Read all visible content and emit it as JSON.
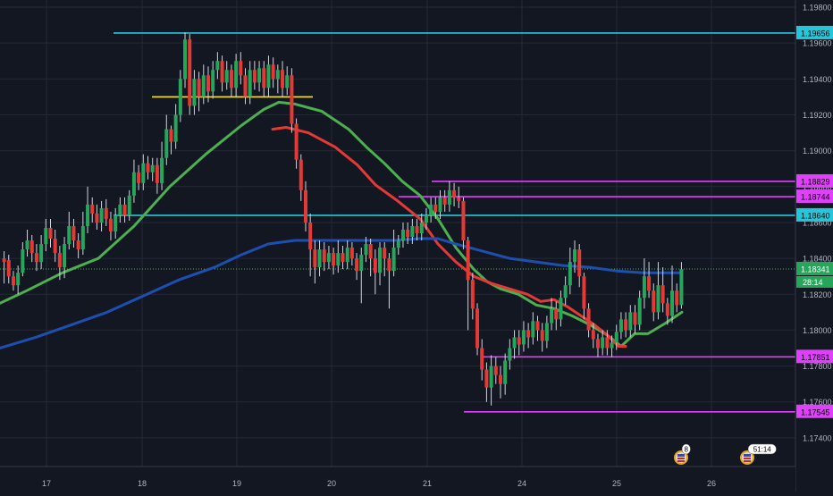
{
  "chart_data": {
    "type": "candlestick",
    "x_ticks": [
      "17",
      "18",
      "19",
      "20",
      "21",
      "24",
      "25",
      "26"
    ],
    "y_ticks": [
      "1.19800",
      "1.19600",
      "1.19400",
      "1.19200",
      "1.19000",
      "1.18800",
      "1.18600",
      "1.18400",
      "1.18200",
      "1.18000",
      "1.17800",
      "1.17600",
      "1.17400"
    ],
    "ylim": [
      1.1724,
      1.1984
    ],
    "grid": true,
    "current_price": {
      "value": 1.18341,
      "label": "1.18341",
      "countdown": "28:14"
    },
    "price_lines": [
      {
        "label": "1.19656",
        "value": 1.19656,
        "color": "#26c6da"
      },
      {
        "label": "1.18829",
        "value": 1.18829,
        "color": "#e040fb"
      },
      {
        "label": "1.18744",
        "value": 1.18744,
        "color": "#e040fb"
      },
      {
        "label": "1.18640",
        "value": 1.1864,
        "color": "#26c6da"
      },
      {
        "label": "1.17851",
        "value": 1.17851,
        "color": "#e040fb"
      },
      {
        "label": "1.17545",
        "value": 1.17545,
        "color": "#e040fb"
      }
    ],
    "short_line": {
      "value": 1.193,
      "color": "#f5e142"
    },
    "moving_averages": [
      {
        "color": "#4caf50",
        "points": [
          [
            0,
            1.1815
          ],
          [
            30,
            1.1822
          ],
          [
            70,
            1.1832
          ],
          [
            110,
            1.184
          ],
          [
            150,
            1.1858
          ],
          [
            190,
            1.188
          ],
          [
            230,
            1.1898
          ],
          [
            270,
            1.1914
          ],
          [
            295,
            1.1923
          ],
          [
            312,
            1.1927
          ],
          [
            330,
            1.1926
          ],
          [
            360,
            1.1922
          ],
          [
            390,
            1.1912
          ],
          [
            410,
            1.1902
          ],
          [
            430,
            1.1893
          ],
          [
            450,
            1.1883
          ],
          [
            470,
            1.1875
          ],
          [
            490,
            1.1862
          ],
          [
            510,
            1.1846
          ],
          [
            530,
            1.1834
          ],
          [
            545,
            1.1827
          ],
          [
            560,
            1.1823
          ],
          [
            580,
            1.182
          ],
          [
            600,
            1.1814
          ],
          [
            620,
            1.1812
          ],
          [
            640,
            1.1808
          ],
          [
            660,
            1.1803
          ],
          [
            680,
            1.1797
          ],
          [
            695,
            1.1791
          ],
          [
            710,
            1.1798
          ],
          [
            725,
            1.1798
          ],
          [
            745,
            1.1804
          ],
          [
            763,
            1.181
          ]
        ]
      },
      {
        "color": "#e53935",
        "points": [
          [
            305,
            1.1912
          ],
          [
            320,
            1.1913
          ],
          [
            345,
            1.191
          ],
          [
            375,
            1.1902
          ],
          [
            400,
            1.1892
          ],
          [
            420,
            1.1881
          ],
          [
            445,
            1.1872
          ],
          [
            470,
            1.1862
          ],
          [
            490,
            1.1848
          ],
          [
            510,
            1.1838
          ],
          [
            530,
            1.183
          ],
          [
            550,
            1.1826
          ],
          [
            570,
            1.1823
          ],
          [
            590,
            1.182
          ],
          [
            605,
            1.1816
          ],
          [
            620,
            1.1817
          ],
          [
            635,
            1.1813
          ],
          [
            650,
            1.1808
          ],
          [
            665,
            1.1803
          ],
          [
            680,
            1.1797
          ],
          [
            692,
            1.1791
          ],
          [
            700,
            1.1791
          ]
        ]
      },
      {
        "color": "#1e4fb0",
        "points": [
          [
            0,
            1.179
          ],
          [
            40,
            1.1796
          ],
          [
            80,
            1.1803
          ],
          [
            120,
            1.181
          ],
          [
            160,
            1.1819
          ],
          [
            200,
            1.1828
          ],
          [
            240,
            1.1835
          ],
          [
            270,
            1.1842
          ],
          [
            300,
            1.1848
          ],
          [
            330,
            1.185
          ],
          [
            360,
            1.185
          ],
          [
            400,
            1.185
          ],
          [
            440,
            1.185
          ],
          [
            470,
            1.1851
          ],
          [
            490,
            1.1851
          ],
          [
            510,
            1.1848
          ],
          [
            540,
            1.1844
          ],
          [
            570,
            1.184
          ],
          [
            600,
            1.1838
          ],
          [
            630,
            1.1836
          ],
          [
            660,
            1.1835
          ],
          [
            690,
            1.1833
          ],
          [
            720,
            1.1832
          ],
          [
            763,
            1.1832
          ]
        ]
      }
    ],
    "candles": [
      [
        1.184,
        1.1838,
        1.1844,
        1.1826
      ],
      [
        1.1839,
        1.183,
        1.1842,
        1.1826
      ],
      [
        1.183,
        1.1825,
        1.1833,
        1.1822
      ],
      [
        1.1825,
        1.1832,
        1.1836,
        1.182
      ],
      [
        1.1832,
        1.1845,
        1.1849,
        1.183
      ],
      [
        1.1845,
        1.185,
        1.1856,
        1.1841
      ],
      [
        1.185,
        1.1843,
        1.1853,
        1.1838
      ],
      [
        1.1843,
        1.1838,
        1.1848,
        1.1833
      ],
      [
        1.1838,
        1.1848,
        1.1853,
        1.1834
      ],
      [
        1.1848,
        1.1857,
        1.1862,
        1.1844
      ],
      [
        1.1857,
        1.1851,
        1.1862,
        1.1846
      ],
      [
        1.1851,
        1.1843,
        1.1856,
        1.1838
      ],
      [
        1.1843,
        1.1835,
        1.1847,
        1.1828
      ],
      [
        1.1835,
        1.1848,
        1.1852,
        1.1829
      ],
      [
        1.1848,
        1.1858,
        1.1866,
        1.1845
      ],
      [
        1.1858,
        1.185,
        1.1862,
        1.1846
      ],
      [
        1.185,
        1.1845,
        1.1854,
        1.184
      ],
      [
        1.1845,
        1.1858,
        1.1866,
        1.1842
      ],
      [
        1.1858,
        1.187,
        1.188,
        1.1854
      ],
      [
        1.187,
        1.1865,
        1.1874,
        1.186
      ],
      [
        1.1865,
        1.186,
        1.187,
        1.1856
      ],
      [
        1.186,
        1.1868,
        1.1872,
        1.1855
      ],
      [
        1.1868,
        1.1862,
        1.1873,
        1.1858
      ],
      [
        1.1862,
        1.1855,
        1.1866,
        1.185
      ],
      [
        1.1855,
        1.1864,
        1.1868,
        1.1851
      ],
      [
        1.1864,
        1.187,
        1.1874,
        1.186
      ],
      [
        1.187,
        1.1864,
        1.1874,
        1.186
      ],
      [
        1.1864,
        1.1875,
        1.1878,
        1.1861
      ],
      [
        1.1875,
        1.1888,
        1.1895,
        1.1871
      ],
      [
        1.1888,
        1.1882,
        1.1892,
        1.1878
      ],
      [
        1.1882,
        1.1893,
        1.1898,
        1.1878
      ],
      [
        1.1893,
        1.1888,
        1.1897,
        1.1884
      ],
      [
        1.1888,
        1.1892,
        1.1896,
        1.1883
      ],
      [
        1.1892,
        1.1882,
        1.1896,
        1.1876
      ],
      [
        1.1882,
        1.1896,
        1.1905,
        1.1878
      ],
      [
        1.1896,
        1.1912,
        1.192,
        1.1892
      ],
      [
        1.1912,
        1.1905,
        1.1914,
        1.1898
      ],
      [
        1.1905,
        1.192,
        1.1926,
        1.1901
      ],
      [
        1.192,
        1.194,
        1.1945,
        1.1916
      ],
      [
        1.194,
        1.1962,
        1.1966,
        1.1935
      ],
      [
        1.1962,
        1.1925,
        1.1965,
        1.192
      ],
      [
        1.1925,
        1.194,
        1.1945,
        1.192
      ],
      [
        1.194,
        1.193,
        1.1944,
        1.1922
      ],
      [
        1.193,
        1.1942,
        1.1948,
        1.1926
      ],
      [
        1.1942,
        1.1933,
        1.1947,
        1.1927
      ],
      [
        1.1933,
        1.1945,
        1.195,
        1.1929
      ],
      [
        1.1945,
        1.195,
        1.1955,
        1.194
      ],
      [
        1.195,
        1.1938,
        1.1953,
        1.1933
      ],
      [
        1.1938,
        1.1945,
        1.195,
        1.1934
      ],
      [
        1.1945,
        1.1935,
        1.1948,
        1.193
      ],
      [
        1.1935,
        1.195,
        1.1954,
        1.193
      ],
      [
        1.195,
        1.1942,
        1.1955,
        1.1937
      ],
      [
        1.1942,
        1.193,
        1.1946,
        1.1926
      ],
      [
        1.193,
        1.1945,
        1.195,
        1.1926
      ],
      [
        1.1945,
        1.1938,
        1.195,
        1.1934
      ],
      [
        1.1938,
        1.1946,
        1.195,
        1.1933
      ],
      [
        1.1946,
        1.1935,
        1.195,
        1.193
      ],
      [
        1.1935,
        1.1948,
        1.1953,
        1.193
      ],
      [
        1.1948,
        1.194,
        1.1952,
        1.1935
      ],
      [
        1.194,
        1.1945,
        1.1948,
        1.1932
      ],
      [
        1.1945,
        1.1935,
        1.195,
        1.193
      ],
      [
        1.1935,
        1.1942,
        1.1947,
        1.1931
      ],
      [
        1.1942,
        1.1915,
        1.1946,
        1.191
      ],
      [
        1.1915,
        1.1895,
        1.1918,
        1.189
      ],
      [
        1.1895,
        1.1878,
        1.1898,
        1.1872
      ],
      [
        1.1878,
        1.186,
        1.1883,
        1.1855
      ],
      [
        1.186,
        1.1845,
        1.1865,
        1.183
      ],
      [
        1.1845,
        1.1835,
        1.185,
        1.1826
      ],
      [
        1.1835,
        1.1845,
        1.185,
        1.183
      ],
      [
        1.1845,
        1.1838,
        1.1849,
        1.1833
      ],
      [
        1.1838,
        1.1843,
        1.1847,
        1.1834
      ],
      [
        1.1843,
        1.1836,
        1.1846,
        1.1831
      ],
      [
        1.1836,
        1.1843,
        1.185,
        1.1832
      ],
      [
        1.1843,
        1.1838,
        1.1847,
        1.1834
      ],
      [
        1.1838,
        1.1846,
        1.185,
        1.1834
      ],
      [
        1.1846,
        1.184,
        1.1849,
        1.1836
      ],
      [
        1.184,
        1.1833,
        1.1843,
        1.1828
      ],
      [
        1.1833,
        1.1842,
        1.1846,
        1.1815
      ],
      [
        1.1842,
        1.1848,
        1.1852,
        1.1838
      ],
      [
        1.1848,
        1.184,
        1.1851,
        1.183
      ],
      [
        1.184,
        1.1832,
        1.1845,
        1.182
      ],
      [
        1.1832,
        1.1846,
        1.1849,
        1.1825
      ],
      [
        1.1846,
        1.184,
        1.1849,
        1.183
      ],
      [
        1.184,
        1.1833,
        1.1843,
        1.1812
      ],
      [
        1.1833,
        1.1846,
        1.1856,
        1.183
      ],
      [
        1.1846,
        1.185,
        1.1853,
        1.1842
      ],
      [
        1.185,
        1.1856,
        1.186,
        1.1846
      ],
      [
        1.1856,
        1.1852,
        1.186,
        1.1848
      ],
      [
        1.1852,
        1.1858,
        1.1862,
        1.1848
      ],
      [
        1.1858,
        1.1854,
        1.1862,
        1.185
      ],
      [
        1.1854,
        1.186,
        1.1865,
        1.185
      ],
      [
        1.186,
        1.1864,
        1.1868,
        1.1856
      ],
      [
        1.1864,
        1.187,
        1.1874,
        1.186
      ],
      [
        1.187,
        1.1866,
        1.1874,
        1.1862
      ],
      [
        1.1866,
        1.1874,
        1.1878,
        1.1862
      ],
      [
        1.1874,
        1.187,
        1.1878,
        1.1866
      ],
      [
        1.187,
        1.1878,
        1.1883,
        1.1866
      ],
      [
        1.1878,
        1.1874,
        1.1882,
        1.1869
      ],
      [
        1.1874,
        1.1872,
        1.188,
        1.1868
      ],
      [
        1.1872,
        1.185,
        1.1874,
        1.1845
      ],
      [
        1.185,
        1.1828,
        1.1852,
        1.18
      ],
      [
        1.1828,
        1.1812,
        1.1832,
        1.1806
      ],
      [
        1.1812,
        1.179,
        1.1815,
        1.1786
      ],
      [
        1.179,
        1.1778,
        1.1795,
        1.1772
      ],
      [
        1.1778,
        1.1768,
        1.1782,
        1.176
      ],
      [
        1.1768,
        1.178,
        1.1786,
        1.1758
      ],
      [
        1.178,
        1.1775,
        1.1785,
        1.177
      ],
      [
        1.1775,
        1.177,
        1.178,
        1.1762
      ],
      [
        1.177,
        1.1783,
        1.1787,
        1.1764
      ],
      [
        1.1783,
        1.179,
        1.1795,
        1.1778
      ],
      [
        1.179,
        1.1796,
        1.18,
        1.1784
      ],
      [
        1.1796,
        1.1792,
        1.18,
        1.1786
      ],
      [
        1.1792,
        1.18,
        1.1805,
        1.1788
      ],
      [
        1.18,
        1.1796,
        1.1804,
        1.179
      ],
      [
        1.1796,
        1.1805,
        1.181,
        1.1792
      ],
      [
        1.1805,
        1.18,
        1.1808,
        1.1794
      ],
      [
        1.18,
        1.1794,
        1.1804,
        1.1788
      ],
      [
        1.1794,
        1.1804,
        1.1808,
        1.179
      ],
      [
        1.1804,
        1.1812,
        1.1818,
        1.18
      ],
      [
        1.1812,
        1.1806,
        1.1816,
        1.18
      ],
      [
        1.1806,
        1.1818,
        1.1822,
        1.1802
      ],
      [
        1.1818,
        1.1825,
        1.183,
        1.1814
      ],
      [
        1.1825,
        1.1838,
        1.1846,
        1.182
      ],
      [
        1.1838,
        1.1845,
        1.185,
        1.1832
      ],
      [
        1.1845,
        1.183,
        1.1848,
        1.1824
      ],
      [
        1.183,
        1.1812,
        1.1832,
        1.1806
      ],
      [
        1.1812,
        1.18,
        1.1815,
        1.1796
      ],
      [
        1.18,
        1.1795,
        1.1804,
        1.179
      ],
      [
        1.1795,
        1.179,
        1.1798,
        1.1785
      ],
      [
        1.179,
        1.1796,
        1.18,
        1.1786
      ],
      [
        1.1796,
        1.179,
        1.18,
        1.1786
      ],
      [
        1.179,
        1.1793,
        1.1797,
        1.1785
      ],
      [
        1.1793,
        1.1799,
        1.1803,
        1.1789
      ],
      [
        1.1799,
        1.1806,
        1.181,
        1.1795
      ],
      [
        1.1806,
        1.18,
        1.181,
        1.1796
      ],
      [
        1.18,
        1.181,
        1.1814,
        1.1796
      ],
      [
        1.181,
        1.1803,
        1.1814,
        1.1798
      ],
      [
        1.1803,
        1.1818,
        1.1822,
        1.18
      ],
      [
        1.1818,
        1.183,
        1.184,
        1.1812
      ],
      [
        1.183,
        1.1822,
        1.1838,
        1.1818
      ],
      [
        1.1822,
        1.181,
        1.1826,
        1.1805
      ],
      [
        1.181,
        1.1825,
        1.1838,
        1.1806
      ],
      [
        1.1825,
        1.1815,
        1.1835,
        1.181
      ],
      [
        1.1815,
        1.1808,
        1.1818,
        1.1803
      ],
      [
        1.1808,
        1.1822,
        1.1836,
        1.1804
      ],
      [
        1.1822,
        1.1814,
        1.1826,
        1.181
      ],
      [
        1.1814,
        1.1834,
        1.1838,
        1.1812
      ]
    ]
  },
  "events": [
    {
      "badge": "8"
    },
    {
      "badge": "51:14"
    }
  ]
}
